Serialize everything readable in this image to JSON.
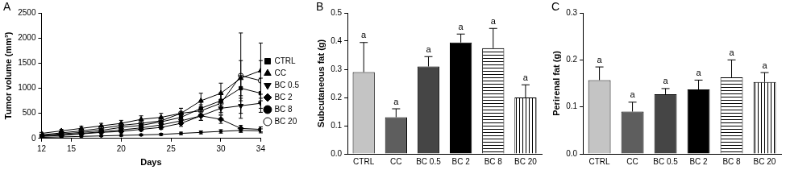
{
  "chart_data": [
    {
      "type": "line",
      "panel": "A",
      "x_label": "Days",
      "y_label": "Tumor volume (mm³)",
      "x": [
        12,
        14,
        16,
        18,
        20,
        22,
        24,
        26,
        28,
        30,
        32,
        34
      ],
      "xlim": [
        12,
        34
      ],
      "xticks": [
        12,
        15,
        20,
        25,
        30,
        34
      ],
      "ylim": [
        0,
        2500
      ],
      "yticks": [
        0,
        500,
        1000,
        1500,
        2000,
        2500
      ],
      "grid": false,
      "legend": "right",
      "series": [
        {
          "name": "CTRL",
          "color": "#000000",
          "marker": "square",
          "values": [
            60,
            90,
            120,
            160,
            220,
            260,
            330,
            420,
            600,
            750,
            1000,
            900
          ],
          "errors": [
            15,
            20,
            25,
            30,
            40,
            50,
            60,
            80,
            120,
            160,
            250,
            300
          ]
        },
        {
          "name": "CC",
          "color": "#000000",
          "marker": "triangle",
          "values": [
            100,
            150,
            200,
            250,
            300,
            380,
            420,
            500,
            750,
            900,
            1200,
            1350
          ],
          "errors": [
            20,
            30,
            40,
            50,
            60,
            70,
            80,
            100,
            150,
            200,
            350,
            550
          ]
        },
        {
          "name": "BC 0.5",
          "color": "#000000",
          "marker": "triangle-down",
          "values": [
            50,
            70,
            100,
            130,
            170,
            210,
            270,
            350,
            450,
            600,
            650,
            700
          ],
          "errors": [
            10,
            15,
            20,
            25,
            30,
            40,
            50,
            70,
            90,
            120,
            150,
            180
          ]
        },
        {
          "name": "BC 2",
          "color": "#000000",
          "marker": "diamond",
          "values": [
            40,
            60,
            90,
            120,
            140,
            180,
            220,
            300,
            450,
            380,
            200,
            180
          ],
          "errors": [
            10,
            15,
            20,
            25,
            30,
            35,
            40,
            60,
            90,
            80,
            60,
            50
          ]
        },
        {
          "name": "BC 8",
          "color": "#000000",
          "marker": "dot",
          "values": [
            20,
            30,
            40,
            50,
            60,
            70,
            80,
            100,
            120,
            140,
            160,
            150
          ],
          "errors": [
            5,
            8,
            10,
            12,
            15,
            18,
            20,
            25,
            30,
            35,
            40,
            40
          ]
        },
        {
          "name": "BC 20",
          "color": "#000000",
          "marker": "circle-open",
          "values": [
            70,
            110,
            150,
            200,
            260,
            300,
            350,
            500,
            550,
            700,
            1250,
            1150
          ],
          "errors": [
            15,
            20,
            30,
            40,
            50,
            60,
            70,
            100,
            120,
            180,
            850,
            400
          ]
        }
      ]
    },
    {
      "type": "bar",
      "panel": "B",
      "y_label": "Subcutaneous fat (g)",
      "categories": [
        "CTRL",
        "CC",
        "BC 0.5",
        "BC 2",
        "BC 8",
        "BC 20"
      ],
      "values": [
        0.29,
        0.13,
        0.31,
        0.395,
        0.375,
        0.2
      ],
      "errors": [
        0.105,
        0.03,
        0.035,
        0.03,
        0.07,
        0.045
      ],
      "annotations": [
        "a",
        "a",
        "a",
        "a",
        "a",
        "a"
      ],
      "colors": [
        "#c4c4c4",
        "#5e5e5e",
        "#454545",
        "#000000",
        "#ffffff",
        "#ffffff"
      ],
      "ylim": [
        0,
        0.5
      ],
      "yticks": [
        {
          "value": 0,
          "label": "0.0"
        },
        0.1,
        0.2,
        0.3,
        0.4,
        0.5
      ],
      "grid": false
    },
    {
      "type": "bar",
      "panel": "C",
      "y_label": "Perirenal fat (g)",
      "categories": [
        "CTRL",
        "CC",
        "BC 0.5",
        "BC 2",
        "BC 8",
        "BC 20"
      ],
      "values": [
        0.157,
        0.09,
        0.127,
        0.137,
        0.163,
        0.153
      ],
      "errors": [
        0.028,
        0.02,
        0.012,
        0.02,
        0.037,
        0.02
      ],
      "annotations": [
        "a",
        "a",
        "a",
        "a",
        "a",
        "a"
      ],
      "colors": [
        "#c4c4c4",
        "#5e5e5e",
        "#454545",
        "#000000",
        "#ffffff",
        "#ffffff"
      ],
      "ylim": [
        0,
        0.3
      ],
      "yticks": [
        {
          "value": 0,
          "label": "0.0"
        },
        0.1,
        0.2,
        0.3
      ],
      "grid": false
    }
  ]
}
